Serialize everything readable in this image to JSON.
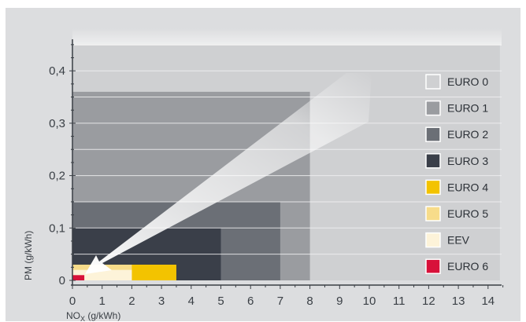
{
  "chart_data": {
    "type": "area",
    "ylabel": "PM (g/kWh)",
    "xlabel_main": "NO",
    "xlabel_sub": "X",
    "xlabel_rest": " (g/kWh)",
    "xlim": [
      0,
      15
    ],
    "ylim": [
      0,
      0.45
    ],
    "x_ticks": [
      0,
      1,
      2,
      3,
      4,
      5,
      6,
      7,
      8,
      9,
      10,
      11,
      12,
      13,
      14
    ],
    "x_tick_labels": [
      "0",
      "1",
      "2",
      "3",
      "4",
      "5",
      "6",
      "7",
      "8",
      "9",
      "10",
      "11",
      "12",
      "13",
      "14"
    ],
    "y_ticks": [
      0,
      0.1,
      0.2,
      0.3,
      0.4
    ],
    "y_tick_labels": [
      "0",
      "0,1",
      "0,2",
      "0,3",
      "0,4"
    ],
    "grid": "horizontal",
    "legend_position": "right",
    "series": [
      {
        "name": "EURO 0",
        "nox_limit": 14.4,
        "pm_limit": 0.45,
        "color": "#cfd0d2"
      },
      {
        "name": "EURO 1",
        "nox_limit": 8.0,
        "pm_limit": 0.36,
        "color": "#9a9ca0"
      },
      {
        "name": "EURO 2",
        "nox_limit": 7.0,
        "pm_limit": 0.15,
        "color": "#6b6f76"
      },
      {
        "name": "EURO 3",
        "nox_limit": 5.0,
        "pm_limit": 0.1,
        "color": "#3a3f49"
      },
      {
        "name": "EURO 4",
        "nox_limit": 3.5,
        "pm_limit": 0.03,
        "color": "#f3c300"
      },
      {
        "name": "EURO 5",
        "nox_limit": 2.0,
        "pm_limit": 0.03,
        "color": "#f7dc8a"
      },
      {
        "name": "EEV",
        "nox_limit": 2.0,
        "pm_limit": 0.02,
        "color": "#fdf3d9"
      },
      {
        "name": "EURO 6",
        "nox_limit": 0.4,
        "pm_limit": 0.01,
        "color": "#d8113a"
      }
    ]
  }
}
